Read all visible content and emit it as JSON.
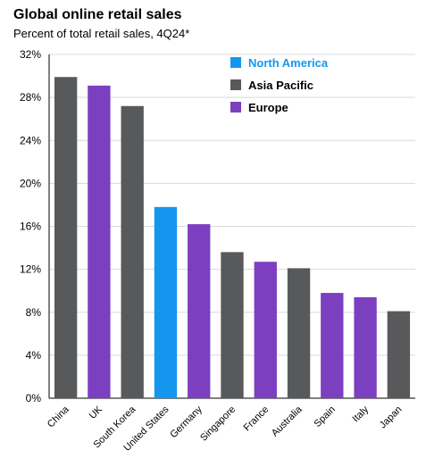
{
  "chart_data": {
    "type": "bar",
    "title": "Global online retail sales",
    "subtitle": "Percent of total retail sales, 4Q24*",
    "xlabel": "",
    "ylabel": "",
    "ylim": [
      0,
      32
    ],
    "yticks": [
      0,
      4,
      8,
      12,
      16,
      20,
      24,
      28,
      32
    ],
    "ytick_labels": [
      "0%",
      "4%",
      "8%",
      "12%",
      "16%",
      "20%",
      "24%",
      "28%",
      "32%"
    ],
    "grid": true,
    "legend_position": "top-right",
    "categories": [
      "China",
      "UK",
      "South Korea",
      "United States",
      "Germany",
      "Singapore",
      "France",
      "Australia",
      "Spain",
      "Italy",
      "Japan"
    ],
    "values": [
      29.9,
      29.1,
      27.2,
      17.8,
      16.2,
      13.6,
      12.7,
      12.1,
      9.8,
      9.4,
      8.1
    ],
    "regions": [
      "Asia Pacific",
      "Europe",
      "Asia Pacific",
      "North America",
      "Europe",
      "Asia Pacific",
      "Europe",
      "Asia Pacific",
      "Europe",
      "Europe",
      "Asia Pacific"
    ],
    "legend": [
      {
        "name": "North America",
        "color": "#1496ee"
      },
      {
        "name": "Asia Pacific",
        "color": "#58595b"
      },
      {
        "name": "Europe",
        "color": "#7b3fc0"
      }
    ],
    "colors": {
      "North America": "#1496ee",
      "Asia Pacific": "#58595b",
      "Europe": "#7b3fc0",
      "North America label": "#1496ee",
      "grid": "#d9d9d9"
    }
  }
}
